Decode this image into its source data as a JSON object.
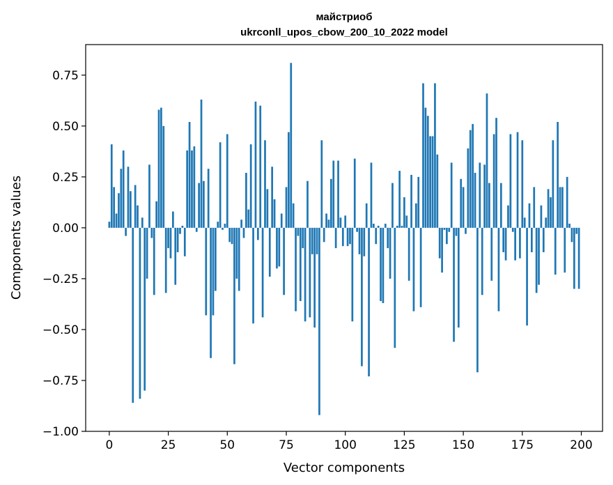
{
  "chart_data": {
    "type": "bar",
    "title": [
      "майстриоб",
      "ukrconll_upos_cbow_200_10_2022 model"
    ],
    "xlabel": "Vector components",
    "ylabel": "Components values",
    "xlim": [
      -10,
      209
    ],
    "ylim": [
      -1.0,
      0.9
    ],
    "xticks": [
      0,
      25,
      50,
      75,
      100,
      125,
      150,
      175,
      200
    ],
    "yticks": [
      -1.0,
      -0.75,
      -0.5,
      -0.25,
      0.0,
      0.25,
      0.5,
      0.75
    ],
    "ytick_labels": [
      "−1.00",
      "−0.75",
      "−0.50",
      "−0.25",
      "0.00",
      "0.25",
      "0.50",
      "0.75"
    ],
    "bar_color": "#1f77b4",
    "x": [
      0,
      1,
      2,
      3,
      4,
      5,
      6,
      7,
      8,
      9,
      10,
      11,
      12,
      13,
      14,
      15,
      16,
      17,
      18,
      19,
      20,
      21,
      22,
      23,
      24,
      25,
      26,
      27,
      28,
      29,
      30,
      31,
      32,
      33,
      34,
      35,
      36,
      37,
      38,
      39,
      40,
      41,
      42,
      43,
      44,
      45,
      46,
      47,
      48,
      49,
      50,
      51,
      52,
      53,
      54,
      55,
      56,
      57,
      58,
      59,
      60,
      61,
      62,
      63,
      64,
      65,
      66,
      67,
      68,
      69,
      70,
      71,
      72,
      73,
      74,
      75,
      76,
      77,
      78,
      79,
      80,
      81,
      82,
      83,
      84,
      85,
      86,
      87,
      88,
      89,
      90,
      91,
      92,
      93,
      94,
      95,
      96,
      97,
      98,
      99,
      100,
      101,
      102,
      103,
      104,
      105,
      106,
      107,
      108,
      109,
      110,
      111,
      112,
      113,
      114,
      115,
      116,
      117,
      118,
      119,
      120,
      121,
      122,
      123,
      124,
      125,
      126,
      127,
      128,
      129,
      130,
      131,
      132,
      133,
      134,
      135,
      136,
      137,
      138,
      139,
      140,
      141,
      142,
      143,
      144,
      145,
      146,
      147,
      148,
      149,
      150,
      151,
      152,
      153,
      154,
      155,
      156,
      157,
      158,
      159,
      160,
      161,
      162,
      163,
      164,
      165,
      166,
      167,
      168,
      169,
      170,
      171,
      172,
      173,
      174,
      175,
      176,
      177,
      178,
      179,
      180,
      181,
      182,
      183,
      184,
      185,
      186,
      187,
      188,
      189,
      190,
      191,
      192,
      193,
      194,
      195,
      196,
      197,
      198,
      199
    ],
    "values": [
      0.03,
      0.41,
      0.2,
      0.07,
      0.17,
      0.29,
      0.38,
      -0.04,
      0.3,
      0.18,
      -0.86,
      0.21,
      0.11,
      -0.84,
      0.05,
      -0.8,
      -0.25,
      0.31,
      -0.05,
      -0.33,
      0.13,
      0.58,
      0.59,
      0.5,
      -0.32,
      -0.1,
      -0.15,
      0.08,
      -0.28,
      -0.12,
      -0.03,
      0.01,
      -0.14,
      0.38,
      0.52,
      0.38,
      0.4,
      -0.02,
      0.22,
      0.63,
      0.23,
      -0.43,
      0.29,
      -0.64,
      -0.43,
      -0.31,
      0.03,
      0.42,
      -0.01,
      0.02,
      0.46,
      -0.07,
      -0.08,
      -0.67,
      -0.25,
      -0.31,
      0.04,
      -0.05,
      0.27,
      0.09,
      0.41,
      -0.47,
      0.62,
      -0.06,
      0.6,
      -0.44,
      0.43,
      0.19,
      -0.24,
      0.3,
      0.14,
      -0.2,
      -0.19,
      0.07,
      -0.33,
      0.2,
      0.47,
      0.81,
      0.12,
      -0.41,
      -0.04,
      -0.36,
      -0.1,
      -0.46,
      0.23,
      -0.44,
      -0.13,
      -0.49,
      -0.13,
      -0.92,
      0.43,
      -0.07,
      0.07,
      0.04,
      0.24,
      0.33,
      -0.1,
      0.33,
      0.05,
      -0.09,
      0.06,
      -0.09,
      -0.08,
      -0.46,
      0.34,
      -0.02,
      -0.13,
      -0.68,
      -0.14,
      0.12,
      -0.73,
      0.32,
      0.02,
      -0.08,
      0.01,
      -0.36,
      -0.37,
      0.02,
      -0.1,
      -0.25,
      0.22,
      -0.59,
      0.01,
      0.28,
      0.01,
      0.15,
      0.06,
      -0.26,
      0.26,
      -0.41,
      0.12,
      0.25,
      -0.39,
      0.71,
      0.59,
      0.55,
      0.45,
      0.45,
      0.71,
      0.36,
      -0.15,
      -0.22,
      -0.01,
      -0.08,
      -0.02,
      0.32,
      -0.56,
      -0.04,
      -0.49,
      0.24,
      0.2,
      -0.03,
      0.39,
      0.48,
      0.51,
      0.27,
      -0.71,
      0.32,
      -0.33,
      0.31,
      0.66,
      0.22,
      -0.26,
      0.46,
      0.54,
      -0.41,
      0.22,
      -0.12,
      -0.16,
      0.11,
      0.46,
      -0.02,
      -0.16,
      0.47,
      -0.15,
      0.43,
      0.05,
      -0.48,
      0.12,
      -0.12,
      0.2,
      -0.32,
      -0.28,
      0.11,
      -0.12,
      0.05,
      0.19,
      0.15,
      0.43,
      -0.23,
      0.52,
      0.2,
      0.2,
      -0.22,
      0.25,
      0.02,
      -0.07,
      -0.3,
      -0.03,
      -0.3
    ]
  }
}
